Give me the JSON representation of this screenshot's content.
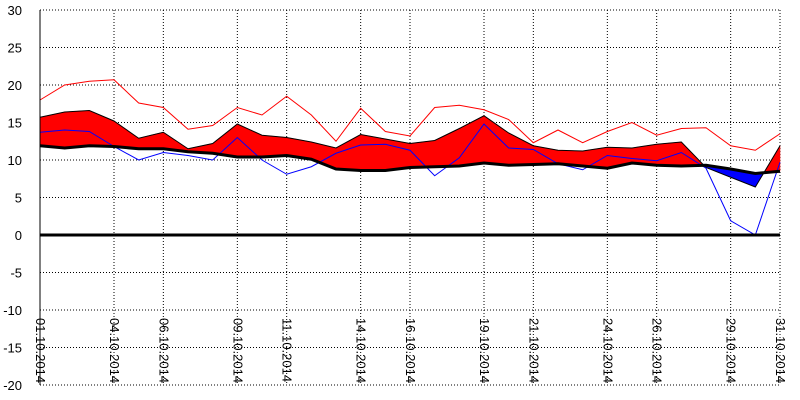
{
  "chart_data": {
    "type": "line",
    "ylim": [
      -20,
      30
    ],
    "yticks": [
      30,
      25,
      20,
      15,
      10,
      5,
      0,
      -5,
      -10,
      -15,
      -20
    ],
    "grid": true,
    "x_tick_labels": [
      {
        "day": 1,
        "label": "01.10.2014"
      },
      {
        "day": 4,
        "label": "04.10.2014"
      },
      {
        "day": 6,
        "label": "06.10.2014"
      },
      {
        "day": 9,
        "label": "09.10.2014"
      },
      {
        "day": 11,
        "label": "11.10.2014"
      },
      {
        "day": 14,
        "label": "14.10.2014"
      },
      {
        "day": 16,
        "label": "16.10.2014"
      },
      {
        "day": 19,
        "label": "19.10.2014"
      },
      {
        "day": 21,
        "label": "21.10.2014"
      },
      {
        "day": 24,
        "label": "24.10.2014"
      },
      {
        "day": 26,
        "label": "26.10.2014"
      },
      {
        "day": 29,
        "label": "29.10.2014"
      },
      {
        "day": 31,
        "label": "31.10.2014"
      }
    ],
    "x": [
      "01.10.2014",
      "02.10.2014",
      "03.10.2014",
      "04.10.2014",
      "05.10.2014",
      "06.10.2014",
      "07.10.2014",
      "08.10.2014",
      "09.10.2014",
      "10.10.2014",
      "11.10.2014",
      "12.10.2014",
      "13.10.2014",
      "14.10.2014",
      "15.10.2014",
      "16.10.2014",
      "17.10.2014",
      "18.10.2014",
      "19.10.2014",
      "20.10.2014",
      "21.10.2014",
      "22.10.2014",
      "23.10.2014",
      "24.10.2014",
      "25.10.2014",
      "26.10.2014",
      "27.10.2014",
      "28.10.2014",
      "29.10.2014",
      "30.10.2014",
      "31.10.2014"
    ],
    "series": [
      {
        "role": "upper-line",
        "color": "#ff0000",
        "values": [
          18.0,
          20.0,
          20.5,
          20.7,
          17.6,
          17.0,
          14.1,
          14.6,
          17.0,
          16.0,
          18.5,
          16.0,
          12.5,
          16.9,
          13.8,
          13.2,
          17.0,
          17.3,
          16.7,
          15.4,
          12.3,
          14.0,
          12.3,
          13.8,
          15.0,
          13.3,
          14.2,
          14.3,
          11.9,
          11.3,
          13.5
        ]
      },
      {
        "role": "filled-line",
        "color": "#ff0000",
        "values": [
          15.7,
          16.4,
          16.6,
          15.2,
          12.9,
          13.7,
          11.5,
          12.2,
          14.8,
          13.3,
          13.0,
          12.4,
          11.6,
          13.4,
          12.8,
          12.2,
          12.6,
          14.2,
          15.9,
          13.6,
          11.9,
          11.3,
          11.2,
          11.7,
          11.6,
          12.1,
          12.4,
          9.0,
          7.7,
          6.4,
          11.9
        ]
      },
      {
        "role": "lower-line",
        "color": "#0000ff",
        "values": [
          13.7,
          14.0,
          13.8,
          11.8,
          10.0,
          11.0,
          10.6,
          10.0,
          13.0,
          10.0,
          8.1,
          9.1,
          10.9,
          12.0,
          12.1,
          11.3,
          7.9,
          10.3,
          14.8,
          11.6,
          11.4,
          9.5,
          8.7,
          10.6,
          10.2,
          9.9,
          11.0,
          8.9,
          1.9,
          0.0,
          9.7
        ]
      },
      {
        "role": "baseline-line",
        "color": "#000000",
        "values": [
          11.9,
          11.6,
          11.9,
          11.8,
          11.5,
          11.5,
          11.1,
          10.9,
          10.4,
          10.4,
          10.6,
          10.1,
          8.8,
          8.6,
          8.6,
          9.0,
          9.1,
          9.2,
          9.6,
          9.3,
          9.4,
          9.5,
          9.2,
          8.9,
          9.6,
          9.3,
          9.2,
          9.3,
          8.8,
          8.2,
          8.5
        ]
      }
    ]
  }
}
